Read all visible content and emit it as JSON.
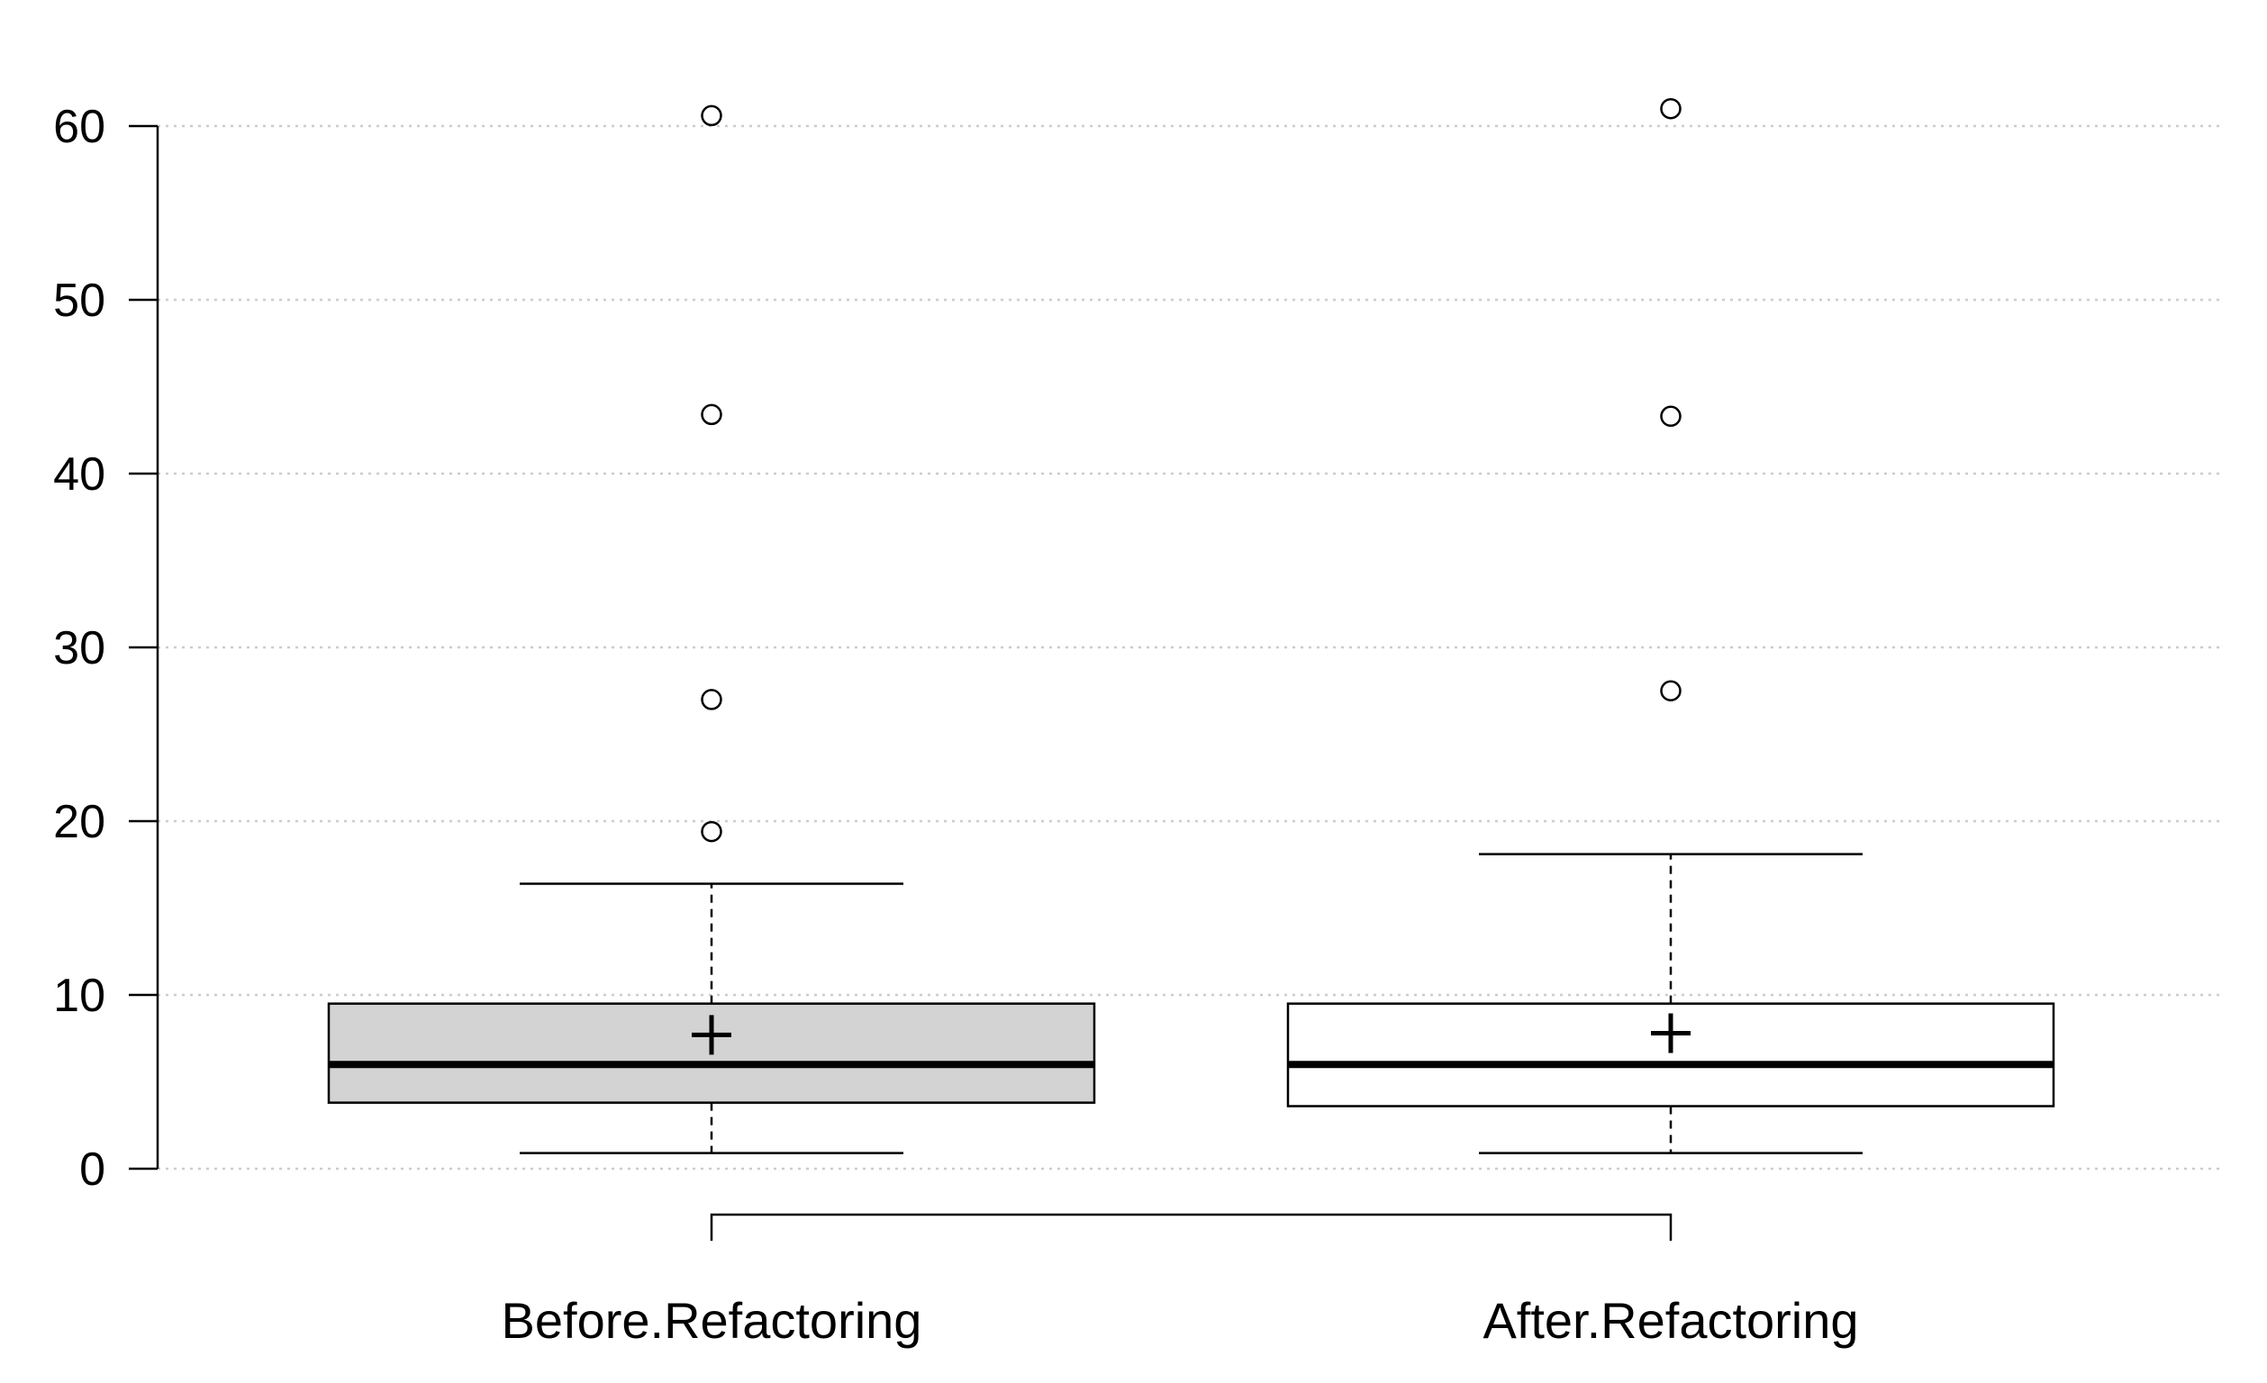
{
  "chart_data": {
    "type": "boxplot",
    "title": "",
    "xlabel": "",
    "ylabel": "",
    "ylim": [
      0,
      60
    ],
    "yticks": [
      0,
      10,
      20,
      30,
      40,
      50,
      60
    ],
    "ytick_labels": [
      "0",
      "10",
      "20",
      "30",
      "40",
      "50",
      "60"
    ],
    "grid": "horizontal-dotted",
    "categories": [
      "Before.Refactoring",
      "After.Refactoring"
    ],
    "series": [
      {
        "name": "Before.Refactoring",
        "whisker_low": 0.9,
        "q1": 3.8,
        "median": 6.0,
        "q3": 9.5,
        "whisker_high": 16.4,
        "mean": 7.7,
        "outliers": [
          19.4,
          27.0,
          43.4,
          60.6
        ],
        "fill": "#d3d3d3"
      },
      {
        "name": "After.Refactoring",
        "whisker_low": 0.9,
        "q1": 3.6,
        "median": 6.0,
        "q3": 9.5,
        "whisker_high": 18.1,
        "mean": 7.8,
        "outliers": [
          27.5,
          43.3,
          61.0
        ],
        "fill": "#ffffff"
      }
    ],
    "comparison_bracket": [
      "Before.Refactoring",
      "After.Refactoring"
    ],
    "colors": {
      "grid": "#cccccc",
      "stroke": "#000000"
    }
  }
}
